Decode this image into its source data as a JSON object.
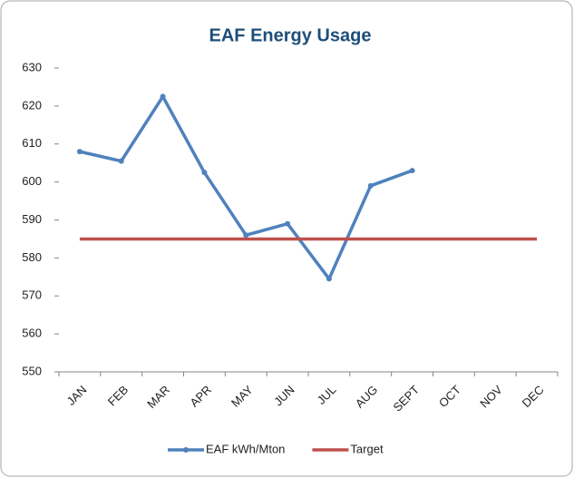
{
  "chart_data": {
    "type": "line",
    "title": "EAF Energy Usage",
    "categories": [
      "JAN",
      "FEB",
      "MAR",
      "APR",
      "MAY",
      "JUN",
      "JUL",
      "AUG",
      "SEPT",
      "OCT",
      "NOV",
      "DEC"
    ],
    "series": [
      {
        "name": "EAF kWh/Mton",
        "color": "#4f81bd",
        "marker": true,
        "values": [
          608,
          605.5,
          622.5,
          602.5,
          586,
          589,
          574.5,
          599,
          603,
          null,
          null,
          null
        ]
      },
      {
        "name": "Target",
        "color": "#c0504d",
        "marker": false,
        "values": [
          585,
          585,
          585,
          585,
          585,
          585,
          585,
          585,
          585,
          585,
          585,
          585
        ]
      }
    ],
    "ylim": [
      550,
      630
    ],
    "yticks": [
      550,
      560,
      570,
      580,
      590,
      600,
      610,
      620,
      630
    ],
    "grid": false,
    "legend": "bottom"
  }
}
